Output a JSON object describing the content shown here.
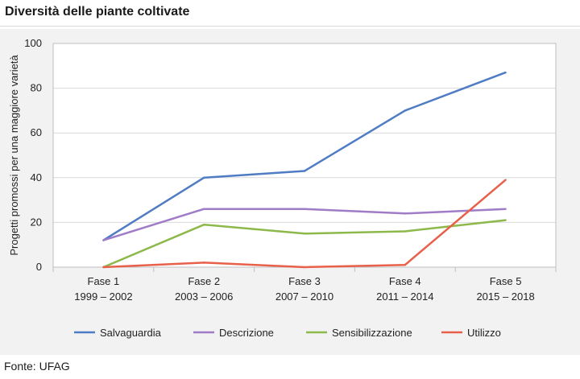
{
  "title": "Diversità delle piante coltivate",
  "source": "Fonte: UFAG",
  "chart_data": {
    "type": "line",
    "ylabel": "Progetti promossi per una maggiore varietà",
    "ylim": [
      0,
      100
    ],
    "yticks": [
      0,
      20,
      40,
      60,
      80,
      100
    ],
    "categories": [
      [
        "Fase 1",
        "1999 – 2002"
      ],
      [
        "Fase 2",
        "2003 – 2006"
      ],
      [
        "Fase 3",
        "2007 – 2010"
      ],
      [
        "Fase 4",
        "2011 – 2014"
      ],
      [
        "Fase 5",
        "2015 – 2018"
      ]
    ],
    "series": [
      {
        "name": "Salvaguardia",
        "color": "#4f7cc4",
        "values": [
          12,
          40,
          43,
          70,
          87
        ]
      },
      {
        "name": "Descrizione",
        "color": "#a07cc8",
        "values": [
          12,
          26,
          26,
          24,
          26
        ]
      },
      {
        "name": "Sensibilizzazione",
        "color": "#8db84a",
        "values": [
          0,
          19,
          15,
          16,
          21
        ]
      },
      {
        "name": "Utilizzo",
        "color": "#e8604a",
        "values": [
          0,
          2,
          0,
          1,
          39
        ]
      }
    ],
    "grid": true,
    "legend_position": "bottom"
  }
}
